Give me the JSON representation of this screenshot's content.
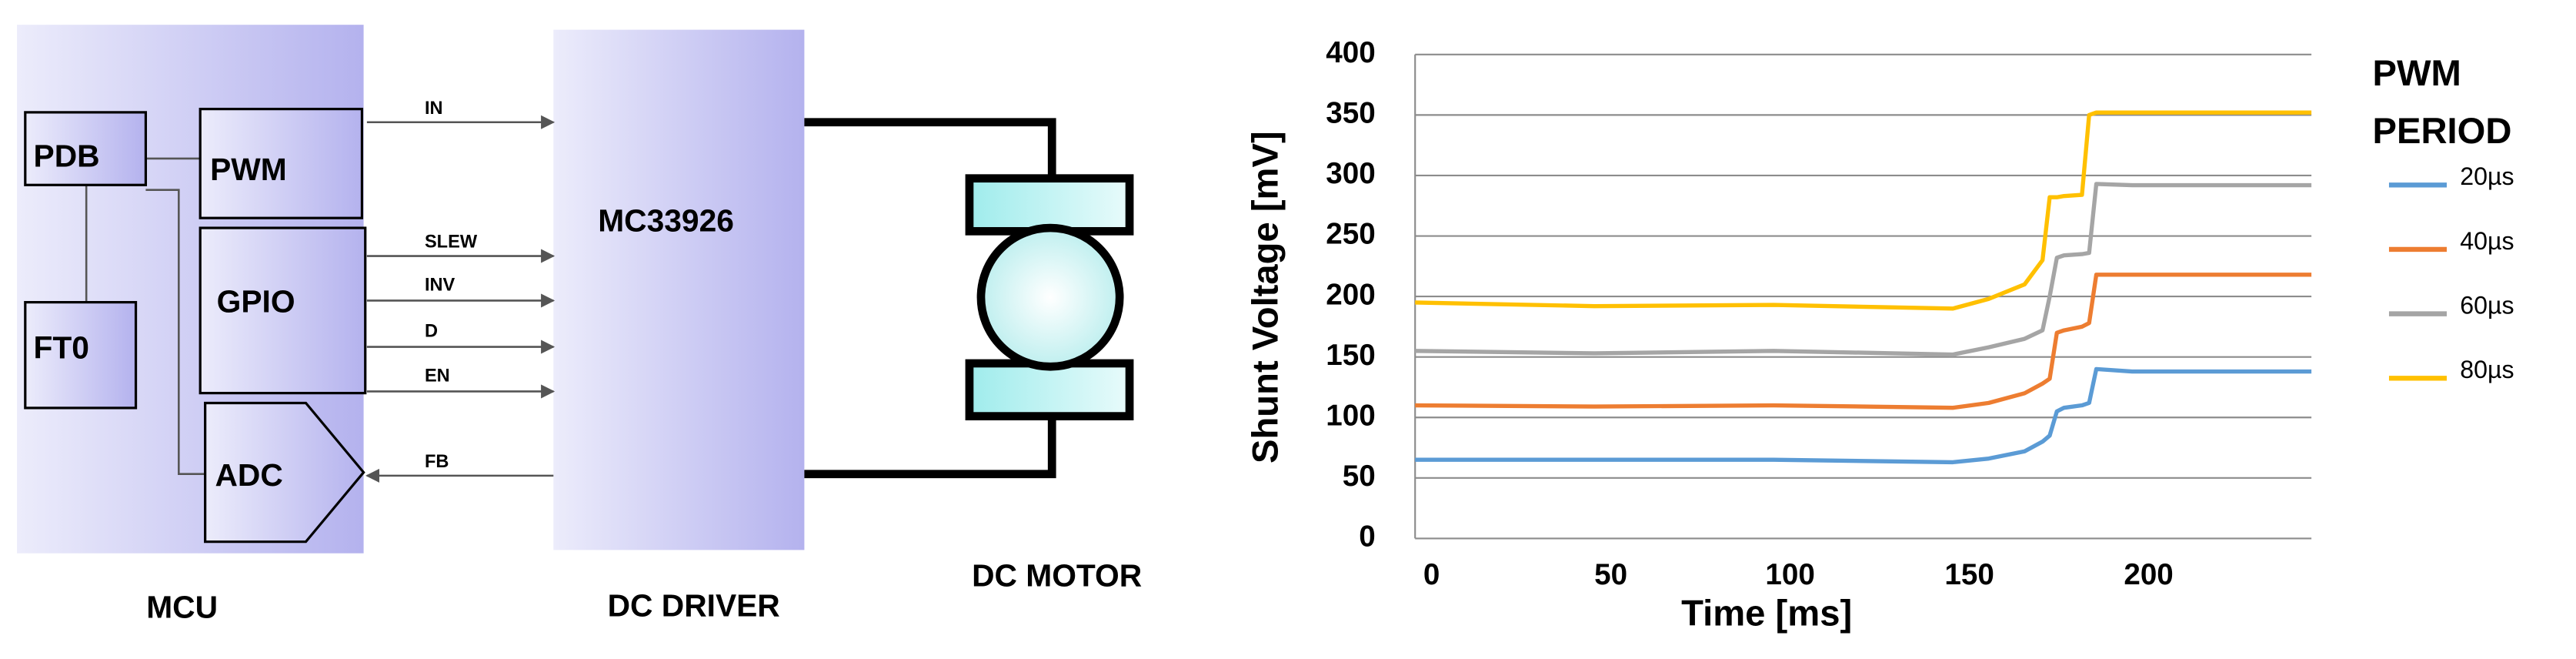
{
  "diagram": {
    "blocks": [
      "PDB",
      "FT0",
      "PWM",
      "GPIO",
      "ADC"
    ],
    "driver_chip": "MC33926",
    "signals": [
      "IN",
      "SLEW",
      "INV",
      "D",
      "EN",
      "FB"
    ],
    "captions": [
      "MCU",
      "DC DRIVER",
      "DC MOTOR"
    ]
  },
  "chart_data": {
    "type": "line",
    "x_label": "Time [ms]",
    "y_label": "Shunt Voltage [mV]",
    "legend_title": [
      "PWM",
      "PERIOD"
    ],
    "x": [
      0,
      50,
      100,
      150,
      160,
      170,
      175,
      177,
      179,
      181,
      186,
      188,
      190,
      200,
      250
    ],
    "series": [
      {
        "name": "20µs",
        "color": "#5b9bd5",
        "values": [
          65,
          65,
          65,
          63,
          66,
          72,
          80,
          85,
          105,
          108,
          110,
          112,
          140,
          138,
          138
        ]
      },
      {
        "name": "40µs",
        "color": "#ed7d31",
        "values": [
          110,
          109,
          110,
          108,
          112,
          120,
          128,
          132,
          170,
          172,
          175,
          178,
          218,
          218,
          218
        ]
      },
      {
        "name": "60µs",
        "color": "#a5a5a5",
        "values": [
          155,
          153,
          155,
          152,
          158,
          165,
          172,
          200,
          232,
          234,
          235,
          236,
          293,
          292,
          292
        ]
      },
      {
        "name": "80µs",
        "color": "#ffc000",
        "values": [
          195,
          192,
          193,
          190,
          198,
          210,
          230,
          282,
          282,
          283,
          284,
          350,
          352,
          352,
          352
        ]
      }
    ],
    "xlim": [
      0,
      250
    ],
    "ylim": [
      0,
      400
    ],
    "xticks": [
      0,
      50,
      100,
      150,
      200
    ],
    "yticks": [
      0,
      50,
      100,
      150,
      200,
      250,
      300,
      350,
      400
    ],
    "grid": true
  }
}
